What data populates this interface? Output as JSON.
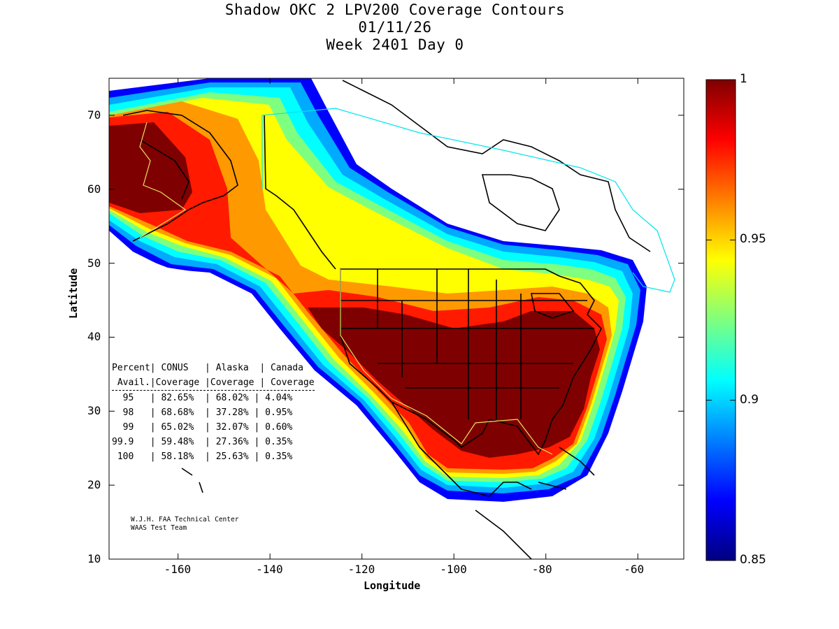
{
  "title": {
    "line1": "Shadow OKC 2 LPV200 Coverage Contours",
    "line2": "01/11/26",
    "line3": "Week 2401 Day 0"
  },
  "axes": {
    "xlabel": "Longitude",
    "ylabel": "Latitude",
    "xrange": [
      -175,
      -50
    ],
    "yrange": [
      10,
      75
    ],
    "xticks": [
      -160,
      -140,
      -120,
      -100,
      -80,
      -60
    ],
    "yticks": [
      10,
      20,
      30,
      40,
      50,
      60,
      70
    ]
  },
  "colorbar": {
    "range": [
      0.85,
      1
    ],
    "ticks": [
      {
        "value": 1,
        "label": "1"
      },
      {
        "value": 0.95,
        "label": "0.95"
      },
      {
        "value": 0.9,
        "label": "0.9"
      },
      {
        "value": 0.85,
        "label": "0.85"
      }
    ],
    "colors": [
      "#00007f",
      "#0000ff",
      "#007fff",
      "#00ffff",
      "#7fff7f",
      "#ffff00",
      "#ff7f00",
      "#ff0000",
      "#7f0000"
    ]
  },
  "stats_table": {
    "header1": "Percent| CONUS   | Alaska  | Canada",
    "header2": " Avail.|Coverage |Coverage | Coverage",
    "rows": [
      "  95   | 82.65%  | 68.02% | 4.04%",
      "  98   | 68.68%  | 37.28% | 0.95%",
      "  99   | 65.02%  | 32.07% | 0.60%",
      "99.9   | 59.48%  | 27.36% | 0.35%",
      " 100   | 58.18%  | 25.63% | 0.35%"
    ]
  },
  "credit": {
    "line1": "W.J.H. FAA Technical Center",
    "line2": "WAAS Test Team"
  }
}
